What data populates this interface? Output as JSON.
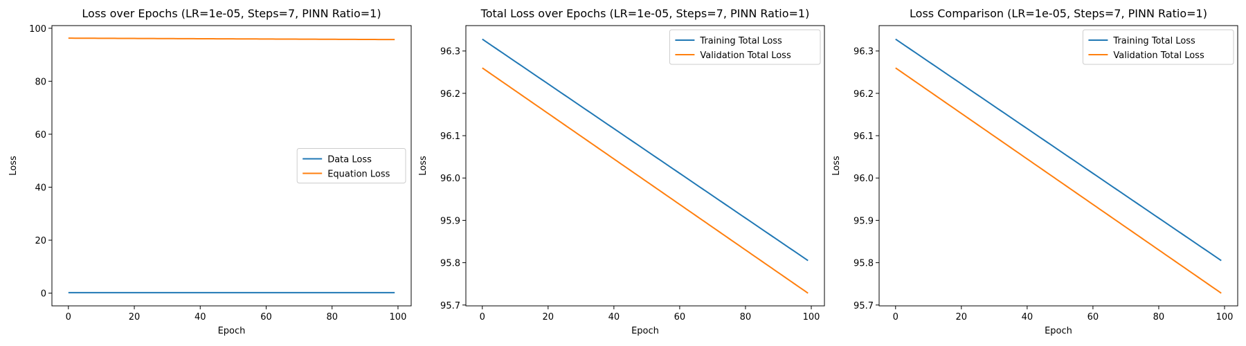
{
  "chart_data": [
    {
      "type": "line",
      "title": "Loss over Epochs (LR=1e-05, Steps=7, PINN Ratio=1)",
      "xlabel": "Epoch",
      "ylabel": "Loss",
      "xlim": [
        -5,
        104
      ],
      "ylim": [
        -4.8,
        101
      ],
      "xticks": [
        0,
        20,
        40,
        60,
        80,
        100
      ],
      "yticks": [
        0,
        20,
        40,
        60,
        80,
        100
      ],
      "tick_decimals": 0,
      "legend_position": "center-right",
      "grid": false,
      "series": [
        {
          "name": "Data Loss",
          "color": "#1f77b4",
          "x_range": [
            0,
            99
          ],
          "y_start": 0.2,
          "y_end": 0.2
        },
        {
          "name": "Equation Loss",
          "color": "#ff7f0e",
          "x_range": [
            0,
            99
          ],
          "y_start": 96.26,
          "y_end": 95.73
        }
      ]
    },
    {
      "type": "line",
      "title": "Total Loss over Epochs (LR=1e-05, Steps=7, PINN Ratio=1)",
      "xlabel": "Epoch",
      "ylabel": "Loss",
      "xlim": [
        -5,
        104
      ],
      "ylim": [
        95.698,
        96.36
      ],
      "xticks": [
        0,
        20,
        40,
        60,
        80,
        100
      ],
      "yticks": [
        95.7,
        95.8,
        95.9,
        96.0,
        96.1,
        96.2,
        96.3
      ],
      "tick_decimals": 1,
      "legend_position": "top-right",
      "grid": false,
      "series": [
        {
          "name": "Training Total Loss",
          "color": "#1f77b4",
          "x_range": [
            0,
            99
          ],
          "y_start": 96.328,
          "y_end": 95.805
        },
        {
          "name": "Validation Total Loss",
          "color": "#ff7f0e",
          "x_range": [
            0,
            99
          ],
          "y_start": 96.26,
          "y_end": 95.728
        }
      ]
    },
    {
      "type": "line",
      "title": "Loss Comparison (LR=1e-05, Steps=7, PINN Ratio=1)",
      "xlabel": "Epoch",
      "ylabel": "Loss",
      "xlim": [
        -5,
        104
      ],
      "ylim": [
        95.698,
        96.36
      ],
      "xticks": [
        0,
        20,
        40,
        60,
        80,
        100
      ],
      "yticks": [
        95.7,
        95.8,
        95.9,
        96.0,
        96.1,
        96.2,
        96.3
      ],
      "tick_decimals": 1,
      "legend_position": "top-right",
      "grid": false,
      "series": [
        {
          "name": "Training Total Loss",
          "color": "#1f77b4",
          "x_range": [
            0,
            99
          ],
          "y_start": 96.328,
          "y_end": 95.805
        },
        {
          "name": "Validation Total Loss",
          "color": "#ff7f0e",
          "x_range": [
            0,
            99
          ],
          "y_start": 96.26,
          "y_end": 95.728
        }
      ]
    }
  ]
}
